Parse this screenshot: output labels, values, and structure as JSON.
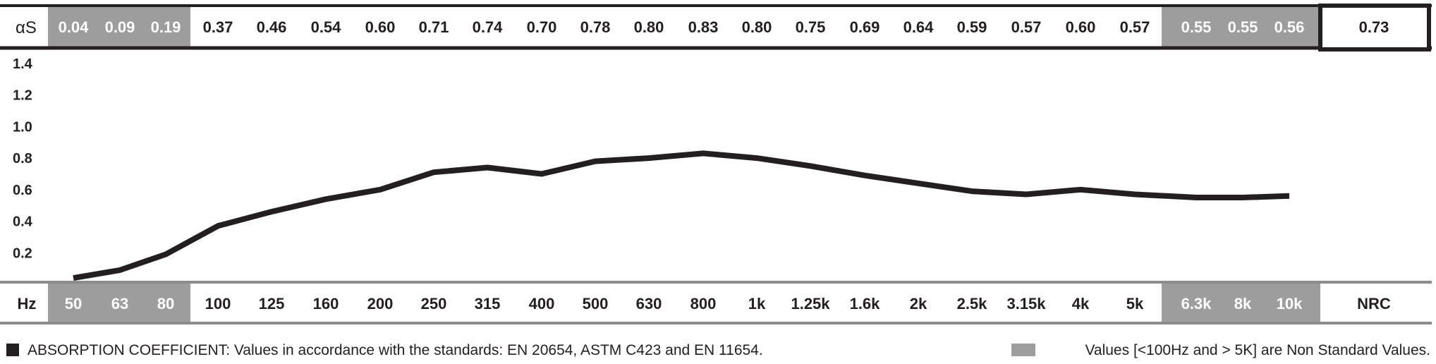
{
  "colors": {
    "ink": "#231f20",
    "nonstandard_fill": "#9d9d9d",
    "standard_fill": "#ffffff",
    "rule": "#8c8c8c"
  },
  "row_labels": {
    "alpha": "αS",
    "hz": "Hz"
  },
  "nrc": {
    "label": "NRC",
    "value": "0.73"
  },
  "legend": {
    "absorption_note": "ABSORPTION COEFFICIENT: Values in accordance with the standards: EN 20654, ASTM C423 and EN 11654.",
    "nonstandard_note": "Values [<100Hz and > 5K] are Non Standard Values."
  },
  "chart_data": {
    "type": "line",
    "title": "",
    "xlabel": "Hz",
    "ylabel": "αS",
    "categories": [
      "50",
      "63",
      "80",
      "100",
      "125",
      "160",
      "200",
      "250",
      "315",
      "400",
      "500",
      "630",
      "800",
      "1k",
      "1.25k",
      "1.6k",
      "2k",
      "2.5k",
      "3.15k",
      "4k",
      "5k",
      "6.3k",
      "8k",
      "10k"
    ],
    "values": [
      0.04,
      0.09,
      0.19,
      0.37,
      0.46,
      0.54,
      0.6,
      0.71,
      0.74,
      0.7,
      0.78,
      0.8,
      0.83,
      0.8,
      0.75,
      0.69,
      0.64,
      0.59,
      0.57,
      0.6,
      0.57,
      0.55,
      0.55,
      0.56
    ],
    "value_labels": [
      "0.04",
      "0.09",
      "0.19",
      "0.37",
      "0.46",
      "0.54",
      "0.60",
      "0.71",
      "0.74",
      "0.70",
      "0.78",
      "0.80",
      "0.83",
      "0.80",
      "0.75",
      "0.69",
      "0.64",
      "0.59",
      "0.57",
      "0.60",
      "0.57",
      "0.55",
      "0.55",
      "0.56"
    ],
    "non_standard": [
      true,
      true,
      true,
      false,
      false,
      false,
      false,
      false,
      false,
      false,
      false,
      false,
      false,
      false,
      false,
      false,
      false,
      false,
      false,
      false,
      false,
      true,
      true,
      true
    ],
    "yticks": [
      "1.4",
      "1.2",
      "1.0",
      "0.8",
      "0.6",
      "0.4",
      "0.2"
    ],
    "ylim": [
      0,
      1.4
    ],
    "grid": false,
    "legend": "bottom"
  }
}
